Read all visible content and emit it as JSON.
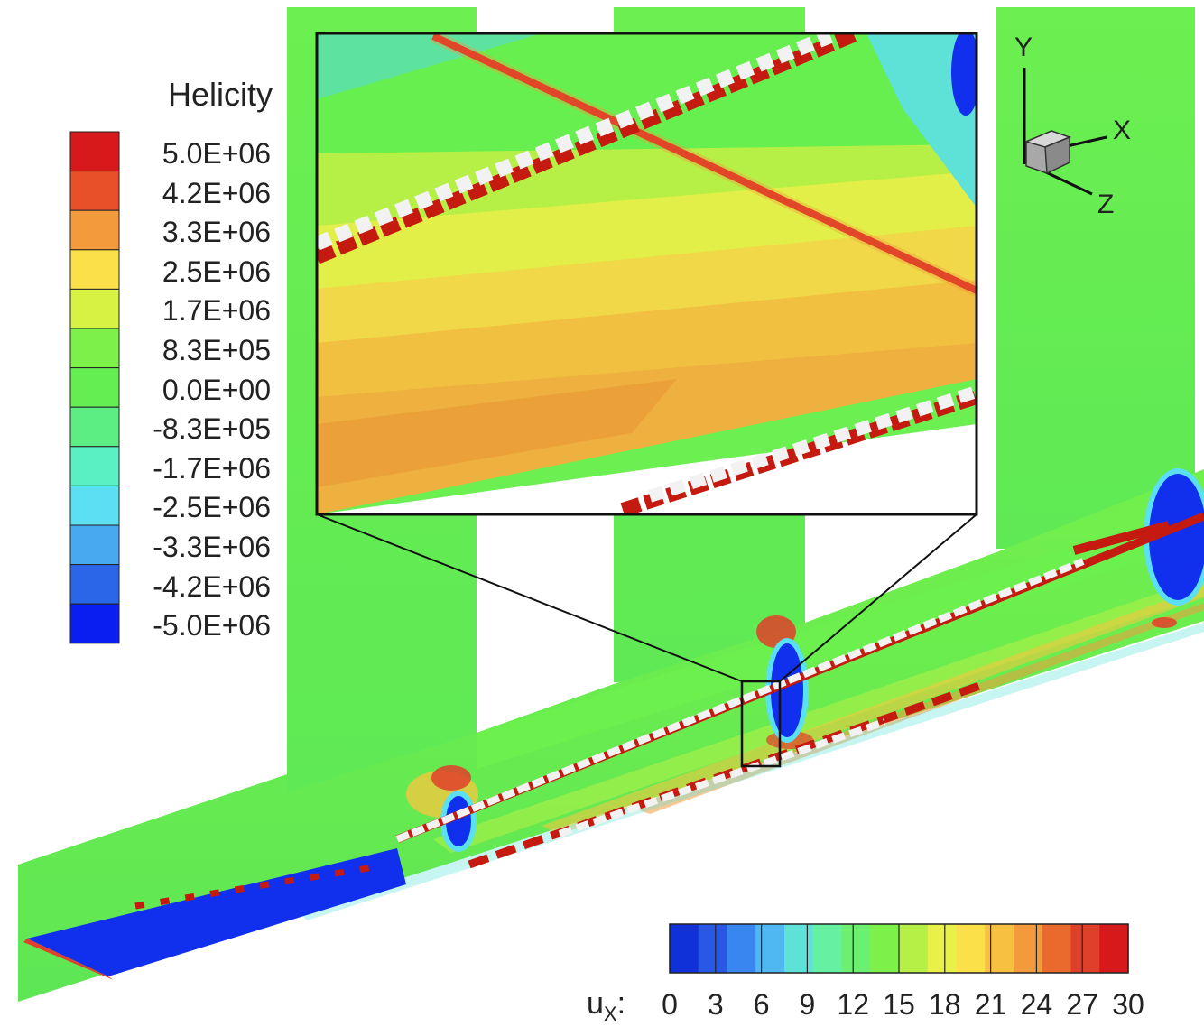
{
  "helicity_legend": {
    "title": "Helicity",
    "labels": [
      "5.0E+06",
      "4.2E+06",
      "3.3E+06",
      "2.5E+06",
      "1.7E+06",
      "8.3E+05",
      "0.0E+00",
      "-8.3E+05",
      "-1.7E+06",
      "-2.5E+06",
      "-3.3E+06",
      "-4.2E+06",
      "-5.0E+06"
    ],
    "colors": [
      "#d7191c",
      "#e8502a",
      "#f29a3c",
      "#fbe04a",
      "#d8f244",
      "#7ef04a",
      "#64ee52",
      "#5cee82",
      "#5bf0c4",
      "#5ae0f2",
      "#48a8f0",
      "#2a66e8",
      "#0a1ef2"
    ]
  },
  "ux_legend": {
    "title_base": "u",
    "title_sub": "X",
    "title_suffix": ":",
    "ticks": [
      "0",
      "3",
      "6",
      "9",
      "12",
      "15",
      "18",
      "21",
      "24",
      "27",
      "30"
    ],
    "min": 0,
    "max": 30,
    "colors": [
      "#1030d8",
      "#2a58e6",
      "#3a86f0",
      "#4fb8f2",
      "#5ee2d8",
      "#66f0a2",
      "#6cf070",
      "#7ef04a",
      "#b6f046",
      "#e9f048",
      "#fbe04a",
      "#f8c040",
      "#f29a3c",
      "#ea6a2e",
      "#e0402a",
      "#d7191c"
    ]
  },
  "axes_triad": {
    "x": "X",
    "y": "Y",
    "z": "Z"
  },
  "colors": {
    "field_green": "#66ef4e",
    "vortex_blue": "#1030ee",
    "particle_red": "#c41a10",
    "particle_white": "#f2f2f2",
    "warm_yellow": "#e9e54a",
    "warm_orange": "#f0a63a"
  }
}
